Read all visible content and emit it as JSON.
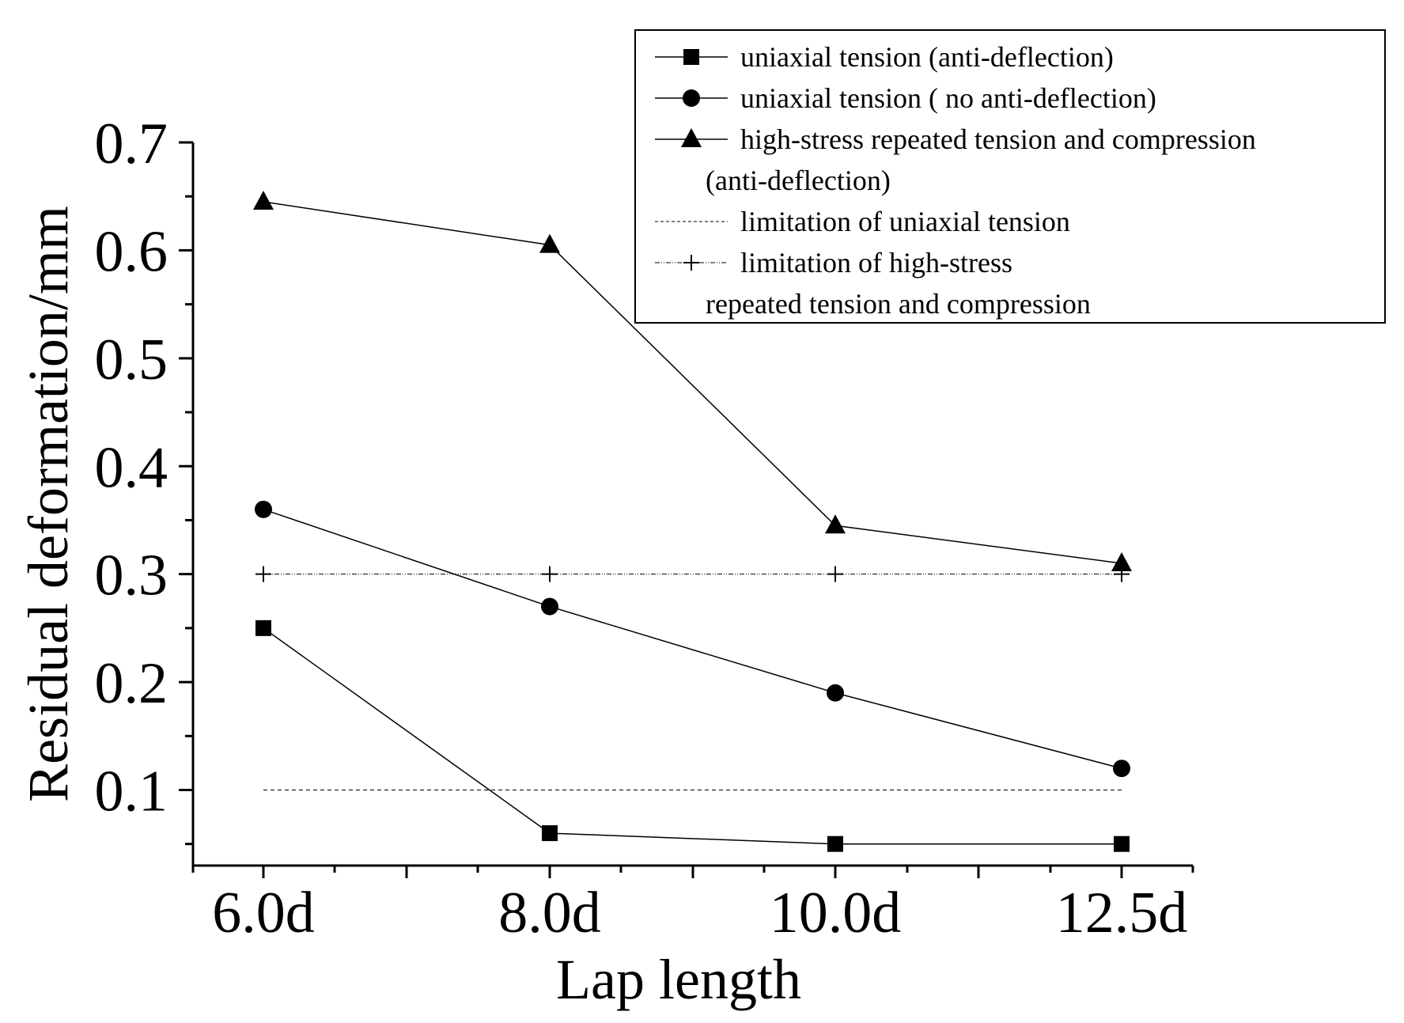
{
  "chart_data": {
    "type": "line",
    "title": "",
    "xlabel": "Lap length",
    "ylabel": "Residual deformation/mm",
    "categories": [
      "6.0d",
      "8.0d",
      "10.0d",
      "12.5d"
    ],
    "y_ticks": [
      "0.1",
      "0.2",
      "0.3",
      "0.4",
      "0.5",
      "0.6",
      "0.7"
    ],
    "ylim": [
      0.03,
      0.7
    ],
    "grid": false,
    "legend_position": "top-right",
    "series": [
      {
        "name": "uniaxial tension (anti-deflection)",
        "marker": "square",
        "line": "solid",
        "values": [
          0.25,
          0.06,
          0.05,
          0.05
        ]
      },
      {
        "name": "uniaxial tension ( no anti-deflection)",
        "marker": "circle",
        "line": "solid",
        "values": [
          0.36,
          0.27,
          0.19,
          0.12
        ]
      },
      {
        "name": "high-stress repeated tension and compression",
        "name_cont": "(anti-deflection)",
        "marker": "triangle",
        "line": "solid",
        "values": [
          0.645,
          0.605,
          0.345,
          0.31
        ]
      },
      {
        "name": "limitation of uniaxial tension",
        "marker": "none",
        "line": "dashed",
        "values": [
          0.1,
          0.1,
          0.1,
          0.1
        ]
      },
      {
        "name": "limitation of high-stress",
        "name_cont": "repeated tension and compression",
        "marker": "plus",
        "line": "dashdot",
        "values": [
          0.3,
          0.3,
          0.3,
          0.3
        ]
      }
    ]
  }
}
